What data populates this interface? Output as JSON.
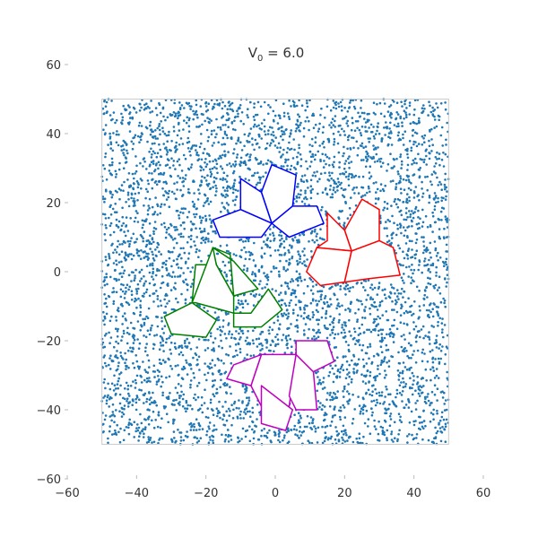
{
  "chart_data": {
    "type": "scatter",
    "title": {
      "base": "V",
      "subscript": "0",
      "rest": " = 6.0"
    },
    "xlabel": "",
    "ylabel": "",
    "xlim": [
      -60,
      60
    ],
    "ylim": [
      -60,
      60
    ],
    "xticks": [
      {
        "value": -60,
        "label": "−60"
      },
      {
        "value": -40,
        "label": "−40"
      },
      {
        "value": -20,
        "label": "−20"
      },
      {
        "value": 0,
        "label": "0"
      },
      {
        "value": 20,
        "label": "20"
      },
      {
        "value": 40,
        "label": "40"
      },
      {
        "value": 60,
        "label": "60"
      }
    ],
    "yticks": [
      {
        "value": 60,
        "label": "60"
      },
      {
        "value": 40,
        "label": "40"
      },
      {
        "value": 20,
        "label": "20"
      },
      {
        "value": 0,
        "label": "0"
      },
      {
        "value": -20,
        "label": "−20"
      },
      {
        "value": -40,
        "label": "−40"
      },
      {
        "value": -60,
        "label": "−60"
      }
    ],
    "grid": false,
    "box": {
      "xmin": -50,
      "xmax": 50,
      "ymin": -50,
      "ymax": 50
    },
    "scatter": {
      "color": "#1f77b4",
      "count": 5200,
      "distribution": "uniform",
      "range": [
        -50,
        50
      ]
    },
    "shapes": [
      {
        "name": "blue",
        "color": "#0000ff",
        "polygons": [
          [
            [
              -4,
              23
            ],
            [
              -1,
              31
            ],
            [
              6,
              28
            ],
            [
              5,
              19
            ],
            [
              -1,
              14
            ]
          ],
          [
            [
              -4,
              23
            ],
            [
              -10,
              27
            ],
            [
              -10,
              18
            ],
            [
              -1,
              14
            ]
          ],
          [
            [
              -10,
              18
            ],
            [
              -1,
              14
            ],
            [
              -4,
              10
            ],
            [
              -16,
              10
            ],
            [
              -18,
              15
            ]
          ],
          [
            [
              -1,
              14
            ],
            [
              5,
              19
            ],
            [
              12,
              19
            ],
            [
              14,
              14
            ],
            [
              4,
              10
            ]
          ]
        ]
      },
      {
        "name": "red",
        "color": "#ff0000",
        "polygons": [
          [
            [
              20,
              12
            ],
            [
              25,
              21
            ],
            [
              30,
              18
            ],
            [
              30,
              9
            ],
            [
              22,
              6
            ]
          ],
          [
            [
              22,
              6
            ],
            [
              20,
              12
            ],
            [
              15,
              17
            ],
            [
              15,
              9
            ],
            [
              12,
              7
            ]
          ],
          [
            [
              22,
              6
            ],
            [
              12,
              7
            ],
            [
              9,
              0
            ],
            [
              13,
              -4
            ],
            [
              20,
              -3
            ]
          ],
          [
            [
              30,
              9
            ],
            [
              22,
              6
            ],
            [
              20,
              -3
            ],
            [
              27,
              -2
            ],
            [
              36,
              -1
            ],
            [
              34,
              7
            ]
          ]
        ]
      },
      {
        "name": "green",
        "color": "#008000",
        "polygons": [
          [
            [
              -24,
              -9
            ],
            [
              -23,
              2
            ],
            [
              -17,
              2
            ],
            [
              -12,
              -7
            ]
          ],
          [
            [
              -18,
              7
            ],
            [
              -17,
              2
            ],
            [
              -12,
              -7
            ],
            [
              -12,
              -12
            ],
            [
              -23,
              -9
            ],
            [
              -24,
              -9
            ]
          ],
          [
            [
              -18,
              7
            ],
            [
              -13,
              5
            ],
            [
              -12,
              -7
            ],
            [
              -5,
              -5
            ],
            [
              -12,
              3
            ]
          ],
          [
            [
              -12,
              -12
            ],
            [
              -7,
              -12
            ],
            [
              -2,
              -5
            ],
            [
              2,
              -11
            ],
            [
              -4,
              -16
            ],
            [
              -12,
              -16
            ]
          ],
          [
            [
              -24,
              -9
            ],
            [
              -32,
              -13
            ],
            [
              -30,
              -18
            ],
            [
              -20,
              -19
            ],
            [
              -17,
              -14
            ]
          ]
        ]
      },
      {
        "name": "magenta",
        "color": "#c000c0",
        "polygons": [
          [
            [
              -4,
              -24
            ],
            [
              -7,
              -33
            ],
            [
              -4,
              -39
            ],
            [
              4,
              -39
            ],
            [
              6,
              -24
            ]
          ],
          [
            [
              -4,
              -24
            ],
            [
              -7,
              -33
            ],
            [
              -14,
              -31
            ],
            [
              -12,
              -27
            ]
          ],
          [
            [
              -4,
              -33
            ],
            [
              -4,
              -40
            ],
            [
              -4,
              -44
            ],
            [
              3,
              -46
            ],
            [
              5,
              -40
            ]
          ],
          [
            [
              6,
              -24
            ],
            [
              11,
              -29
            ],
            [
              12,
              -40
            ],
            [
              6,
              -40
            ],
            [
              4,
              -36
            ]
          ],
          [
            [
              6,
              -24
            ],
            [
              11,
              -29
            ],
            [
              17,
              -26
            ],
            [
              15,
              -20
            ],
            [
              6,
              -20
            ]
          ]
        ]
      }
    ]
  }
}
